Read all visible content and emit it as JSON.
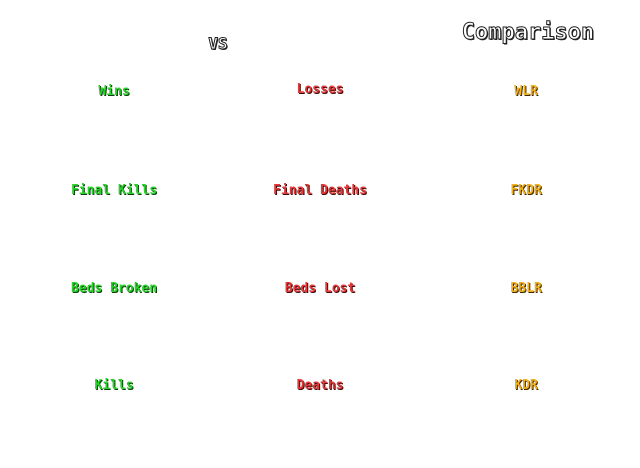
{
  "header": {
    "vs": "VS",
    "title": "Comparison"
  },
  "colors": {
    "player_stat": "#2bd22b",
    "opponent_stat": "#e03a3a",
    "ratio_stat": "#f0b020"
  },
  "rows": [
    {
      "left": "Wins",
      "middle": "Losses",
      "right": "WLR"
    },
    {
      "left": "Final Kills",
      "middle": "Final Deaths",
      "right": "FKDR"
    },
    {
      "left": "Beds Broken",
      "middle": "Beds Lost",
      "right": "BBLR"
    },
    {
      "left": "Kills",
      "middle": "Deaths",
      "right": "KDR"
    }
  ]
}
